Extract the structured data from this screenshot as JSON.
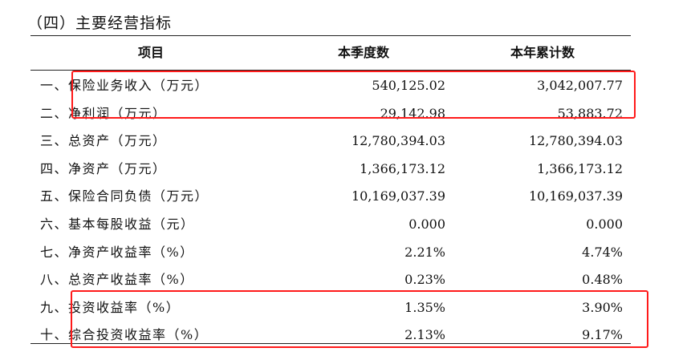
{
  "section": {
    "title": "（四）主要经营指标"
  },
  "table": {
    "headers": {
      "item": "项目",
      "quarter": "本季度数",
      "ytd": "本年累计数"
    },
    "rows": [
      {
        "label": "一、保险业务收入（万元）",
        "quarter": "540,125.02",
        "ytd": "3,042,007.77"
      },
      {
        "label": "二、净利润（万元）",
        "quarter": "29,142.98",
        "ytd": "53,883.72"
      },
      {
        "label": "三、总资产（万元）",
        "quarter": "12,780,394.03",
        "ytd": "12,780,394.03"
      },
      {
        "label": "四、净资产（万元）",
        "quarter": "1,366,173.12",
        "ytd": "1,366,173.12"
      },
      {
        "label": "五、保险合同负债（万元）",
        "quarter": "10,169,037.39",
        "ytd": "10,169,037.39"
      },
      {
        "label": "六、基本每股收益（元）",
        "quarter": "0.000",
        "ytd": "0.000"
      },
      {
        "label": "七、净资产收益率（%）",
        "quarter": "2.21%",
        "ytd": "4.74%"
      },
      {
        "label": "八、总资产收益率（%）",
        "quarter": "0.23%",
        "ytd": "0.48%"
      },
      {
        "label": "九、投资收益率（%）",
        "quarter": "1.35%",
        "ytd": "3.90%"
      },
      {
        "label": "十、综合投资收益率（%）",
        "quarter": "2.13%",
        "ytd": "9.17%"
      }
    ]
  },
  "annotations": {
    "highlight_color": "#ff1a1a"
  }
}
